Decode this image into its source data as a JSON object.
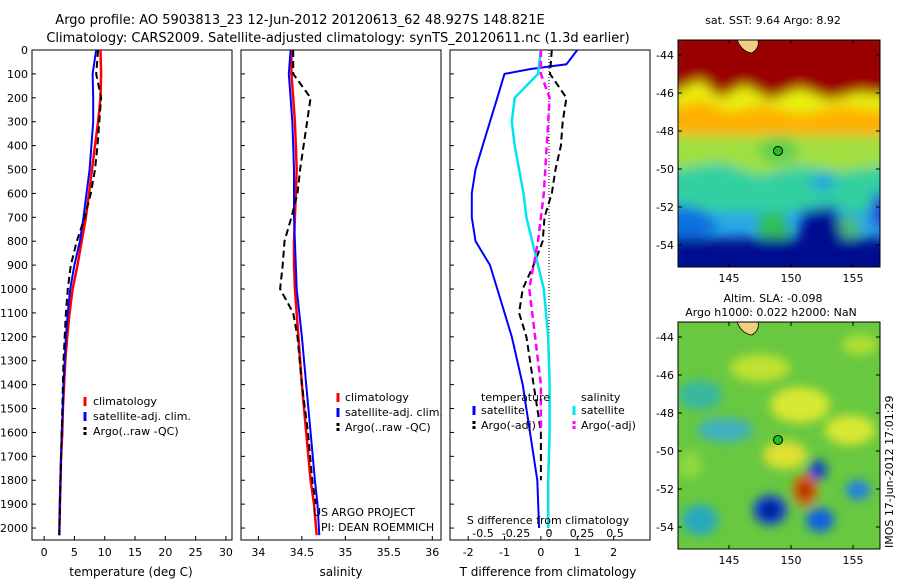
{
  "header": {
    "title_line1": "Argo profile: AO 5903813_23 12-Jun-2012 20120613_62 48.927S 148.821E",
    "title_line2": "Climatology: CARS2009. Satellite-adjusted climatology: synTS_20120611.nc (1.3d earlier)"
  },
  "colors": {
    "climatology": "#ff0000",
    "satellite": "#0000ff",
    "argo": "#000000",
    "sal_satellite": "#00e5ee",
    "sal_argo": "#ff00ff"
  },
  "depth_axis": {
    "ticks": [
      "0",
      "100",
      "200",
      "300",
      "400",
      "500",
      "600",
      "700",
      "800",
      "900",
      "1000",
      "1100",
      "1200",
      "1300",
      "1400",
      "1500",
      "1600",
      "1700",
      "1800",
      "1900",
      "2000"
    ],
    "range": [
      0,
      2050
    ]
  },
  "panel_temperature": {
    "xlabel": "temperature (deg C)",
    "xticks": [
      "0",
      "5",
      "10",
      "15",
      "20",
      "25",
      "30"
    ],
    "xrange": [
      -2,
      31
    ],
    "legend": [
      "climatology",
      "satellite-adj. clim.",
      "Argo(..raw -QC)"
    ]
  },
  "panel_salinity": {
    "xlabel": "salinity",
    "xticks": [
      "34",
      "34.5",
      "35",
      "35.5",
      "36"
    ],
    "xrange": [
      33.8,
      36.1
    ],
    "legend": [
      "climatology",
      "satellite-adj. clim.",
      "Argo(..raw -QC)"
    ],
    "credit_line1": "US ARGO PROJECT",
    "credit_line2": "PI: DEAN ROEMMICH"
  },
  "panel_difference": {
    "xlabel": "T difference from climatology",
    "xticks": [
      "-2",
      "-1",
      "0",
      "1",
      "2"
    ],
    "xrange": [
      -2.5,
      3
    ],
    "top_label": "S difference from climatology",
    "top_ticks": [
      "-0.5",
      "-0.25",
      "0",
      "0.25",
      "0.5"
    ],
    "legend_temperature_title": "temperature",
    "legend_salinity_title": "salinity",
    "legend_satellite": "satellite",
    "legend_argo": "Argo(-adj)"
  },
  "map_sst": {
    "title": "sat. SST: 9.64 Argo: 8.92",
    "yticks": [
      "-44",
      "-46",
      "-48",
      "-50",
      "-52",
      "-54"
    ],
    "xticks": [
      "145",
      "150",
      "155"
    ]
  },
  "map_sla": {
    "title_line1": "Altim. SLA: -0.098",
    "title_line2": "Argo h1000: 0.022 h2000: NaN",
    "yticks": [
      "-44",
      "-46",
      "-48",
      "-50",
      "-52",
      "-54"
    ],
    "xticks": [
      "145",
      "150",
      "155"
    ]
  },
  "stamp": "IMOS 17-Jun-2012 17:01:29",
  "chart_data": [
    {
      "type": "line",
      "title": "",
      "xlabel": "temperature (deg C)",
      "ylabel": "",
      "xlim": [
        -2,
        31
      ],
      "ylim": [
        2050,
        0
      ],
      "series": [
        {
          "name": "climatology",
          "points": [
            [
              9.3,
              0
            ],
            [
              9.4,
              100
            ],
            [
              9.3,
              200
            ],
            [
              8.9,
              300
            ],
            [
              8.4,
              400
            ],
            [
              7.9,
              500
            ],
            [
              7.4,
              600
            ],
            [
              6.9,
              700
            ],
            [
              6.2,
              800
            ],
            [
              5.5,
              900
            ],
            [
              4.7,
              1000
            ],
            [
              4.2,
              1100
            ],
            [
              3.8,
              1200
            ],
            [
              3.5,
              1300
            ],
            [
              3.3,
              1400
            ],
            [
              3.1,
              1500
            ],
            [
              3.0,
              1600
            ],
            [
              2.8,
              1700
            ],
            [
              2.7,
              1800
            ],
            [
              2.6,
              1900
            ],
            [
              2.5,
              2030
            ]
          ]
        },
        {
          "name": "satellite-adj. clim.",
          "points": [
            [
              8.6,
              0
            ],
            [
              8.0,
              100
            ],
            [
              8.1,
              200
            ],
            [
              8.1,
              300
            ],
            [
              7.8,
              400
            ],
            [
              7.5,
              500
            ],
            [
              7.0,
              600
            ],
            [
              6.5,
              700
            ],
            [
              5.9,
              800
            ],
            [
              5.0,
              900
            ],
            [
              4.3,
              1000
            ],
            [
              3.9,
              1100
            ],
            [
              3.6,
              1200
            ],
            [
              3.4,
              1300
            ],
            [
              3.2,
              1400
            ],
            [
              3.1,
              1500
            ],
            [
              2.9,
              1600
            ],
            [
              2.8,
              1700
            ],
            [
              2.7,
              1800
            ],
            [
              2.6,
              1900
            ],
            [
              2.5,
              2030
            ]
          ]
        },
        {
          "name": "Argo(..raw -QC)",
          "points": [
            [
              8.9,
              0
            ],
            [
              8.6,
              100
            ],
            [
              9.4,
              200
            ],
            [
              9.1,
              300
            ],
            [
              8.8,
              400
            ],
            [
              8.4,
              500
            ],
            [
              7.7,
              600
            ],
            [
              6.7,
              700
            ],
            [
              5.4,
              800
            ],
            [
              4.4,
              900
            ],
            [
              3.9,
              1000
            ],
            [
              3.6,
              1100
            ],
            [
              3.4,
              1200
            ],
            [
              3.2,
              1300
            ],
            [
              3.1,
              1400
            ],
            [
              3.0,
              1500
            ],
            [
              2.9,
              1600
            ],
            [
              2.8,
              1700
            ],
            [
              2.7,
              1800
            ],
            [
              2.6,
              1900
            ],
            [
              2.5,
              2030
            ]
          ]
        }
      ]
    },
    {
      "type": "line",
      "title": "",
      "xlabel": "salinity",
      "ylabel": "",
      "xlim": [
        33.8,
        36.1
      ],
      "ylim": [
        2050,
        0
      ],
      "series": [
        {
          "name": "climatology",
          "points": [
            [
              34.38,
              0
            ],
            [
              34.38,
              100
            ],
            [
              34.4,
              200
            ],
            [
              34.42,
              300
            ],
            [
              34.43,
              400
            ],
            [
              34.44,
              500
            ],
            [
              34.43,
              600
            ],
            [
              34.42,
              700
            ],
            [
              34.41,
              800
            ],
            [
              34.41,
              900
            ],
            [
              34.42,
              1000
            ],
            [
              34.46,
              1200
            ],
            [
              34.5,
              1400
            ],
            [
              34.55,
              1600
            ],
            [
              34.6,
              1800
            ],
            [
              34.64,
              1900
            ],
            [
              34.67,
              2030
            ]
          ]
        },
        {
          "name": "satellite-adj. clim.",
          "points": [
            [
              34.37,
              0
            ],
            [
              34.35,
              100
            ],
            [
              34.37,
              200
            ],
            [
              34.39,
              300
            ],
            [
              34.4,
              400
            ],
            [
              34.41,
              500
            ],
            [
              34.41,
              600
            ],
            [
              34.41,
              700
            ],
            [
              34.42,
              800
            ],
            [
              34.43,
              900
            ],
            [
              34.44,
              1000
            ],
            [
              34.5,
              1200
            ],
            [
              34.55,
              1400
            ],
            [
              34.6,
              1600
            ],
            [
              34.65,
              1800
            ],
            [
              34.68,
              1900
            ],
            [
              34.7,
              2030
            ]
          ]
        },
        {
          "name": "Argo(..raw -QC)",
          "points": [
            [
              34.4,
              0
            ],
            [
              34.4,
              100
            ],
            [
              34.6,
              200
            ],
            [
              34.56,
              300
            ],
            [
              34.52,
              400
            ],
            [
              34.48,
              500
            ],
            [
              34.45,
              600
            ],
            [
              34.38,
              700
            ],
            [
              34.3,
              800
            ],
            [
              34.28,
              900
            ],
            [
              34.25,
              1000
            ],
            [
              34.4,
              1100
            ],
            [
              34.45,
              1200
            ],
            [
              34.5,
              1400
            ],
            [
              34.57,
              1600
            ],
            [
              34.62,
              1800
            ],
            [
              34.66,
              1900
            ]
          ]
        }
      ]
    },
    {
      "type": "line",
      "title": "",
      "xlabel": "T difference from climatology",
      "ylabel": "",
      "xlim": [
        -2.5,
        3
      ],
      "ylim": [
        2050,
        0
      ],
      "series": [
        {
          "name": "temperature satellite",
          "points": [
            [
              1.0,
              0
            ],
            [
              0.7,
              60
            ],
            [
              -0.3,
              80
            ],
            [
              -1.0,
              100
            ],
            [
              -1.2,
              200
            ],
            [
              -1.4,
              300
            ],
            [
              -1.6,
              400
            ],
            [
              -1.8,
              500
            ],
            [
              -1.9,
              600
            ],
            [
              -1.9,
              700
            ],
            [
              -1.8,
              800
            ],
            [
              -1.4,
              900
            ],
            [
              -1.2,
              1000
            ],
            [
              -0.8,
              1200
            ],
            [
              -0.5,
              1400
            ],
            [
              -0.3,
              1600
            ],
            [
              -0.1,
              1800
            ],
            [
              -0.05,
              2000
            ]
          ]
        },
        {
          "name": "temperature Argo(-adj)",
          "points": [
            [
              0.3,
              0
            ],
            [
              0.25,
              100
            ],
            [
              0.7,
              200
            ],
            [
              0.6,
              300
            ],
            [
              0.55,
              400
            ],
            [
              0.4,
              500
            ],
            [
              0.3,
              600
            ],
            [
              0.1,
              700
            ],
            [
              0.05,
              800
            ],
            [
              -0.2,
              900
            ],
            [
              -0.5,
              1000
            ],
            [
              -0.6,
              1100
            ],
            [
              -0.4,
              1200
            ],
            [
              -0.3,
              1300
            ],
            [
              -0.2,
              1400
            ],
            [
              -0.1,
              1500
            ],
            [
              0.0,
              1600
            ],
            [
              0.0,
              1800
            ]
          ]
        },
        {
          "name": "salinity satellite",
          "points": [
            [
              0.0,
              0
            ],
            [
              -0.02,
              100
            ],
            [
              -0.18,
              200
            ],
            [
              -0.2,
              300
            ],
            [
              -0.18,
              400
            ],
            [
              -0.15,
              500
            ],
            [
              -0.12,
              600
            ],
            [
              -0.1,
              700
            ],
            [
              -0.06,
              800
            ],
            [
              -0.02,
              900
            ],
            [
              0.02,
              1000
            ],
            [
              0.05,
              1200
            ],
            [
              0.06,
              1400
            ],
            [
              0.06,
              1600
            ],
            [
              0.05,
              1800
            ],
            [
              0.05,
              2000
            ]
          ]
        },
        {
          "name": "salinity Argo(-adj)",
          "points": [
            [
              0.0,
              0
            ],
            [
              0.0,
              100
            ],
            [
              0.06,
              200
            ],
            [
              0.05,
              300
            ],
            [
              0.04,
              400
            ],
            [
              0.03,
              500
            ],
            [
              0.02,
              600
            ],
            [
              0.0,
              700
            ],
            [
              -0.02,
              800
            ],
            [
              -0.05,
              900
            ],
            [
              -0.08,
              1000
            ],
            [
              -0.06,
              1100
            ],
            [
              -0.04,
              1200
            ],
            [
              -0.02,
              1300
            ],
            [
              0.0,
              1400
            ],
            [
              0.0,
              1500
            ],
            [
              0.0,
              1600
            ]
          ]
        }
      ]
    },
    {
      "type": "heatmap",
      "title": "sat. SST: 9.64 Argo: 8.92",
      "xlabel": "",
      "ylabel": "",
      "xlim": [
        141,
        157
      ],
      "ylim": [
        -55,
        -43
      ],
      "float_position": [
        148.821,
        -48.927
      ]
    },
    {
      "type": "heatmap",
      "title": "Altim. SLA: -0.098",
      "xlabel": "",
      "ylabel": "",
      "xlim": [
        141,
        157
      ],
      "ylim": [
        -55,
        -43
      ],
      "float_position": [
        148.821,
        -48.927
      ]
    }
  ]
}
